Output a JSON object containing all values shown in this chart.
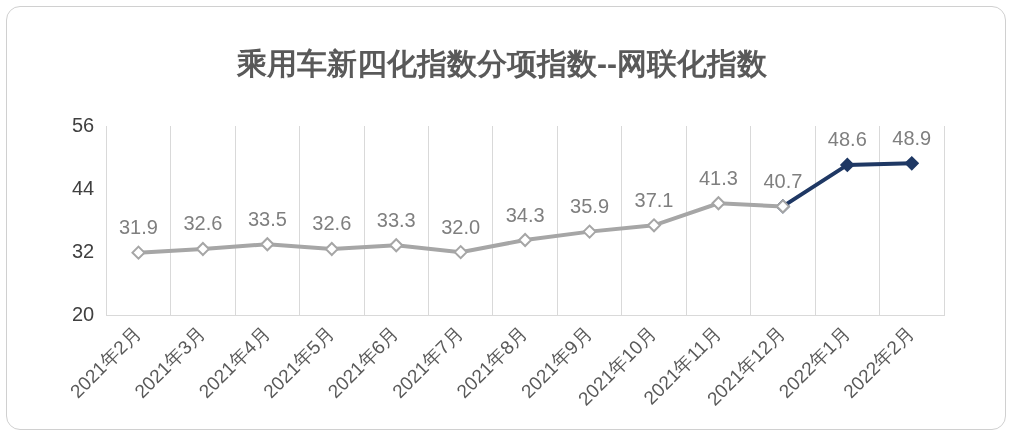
{
  "chart_data": {
    "type": "line",
    "title": "乘用车新四化指数分项指数--网联化指数",
    "categories": [
      "2021年2月",
      "2021年3月",
      "2021年4月",
      "2021年5月",
      "2021年6月",
      "2021年7月",
      "2021年8月",
      "2021年9月",
      "2021年10月",
      "2021年11月",
      "2021年12月",
      "2022年1月",
      "2022年2月"
    ],
    "series": [
      {
        "color": "#a6a6a6",
        "values": [
          31.9,
          32.6,
          33.5,
          32.6,
          33.3,
          32.0,
          34.3,
          35.9,
          37.1,
          41.3,
          40.7,
          null,
          null
        ],
        "value_labels": [
          "31.9",
          "32.6",
          "33.5",
          "32.6",
          "33.3",
          "32.0",
          "34.3",
          "35.9",
          "37.1",
          "41.3",
          "40.7",
          null,
          null
        ]
      },
      {
        "color": "#1f3864",
        "values": [
          null,
          null,
          null,
          null,
          null,
          null,
          null,
          null,
          null,
          null,
          40.7,
          48.6,
          48.9
        ],
        "value_labels": [
          null,
          null,
          null,
          null,
          null,
          null,
          null,
          null,
          null,
          null,
          null,
          "48.6",
          "48.9"
        ]
      }
    ],
    "ylim": [
      20,
      56
    ],
    "yticks": [
      20,
      32,
      44,
      56
    ],
    "grid": "x",
    "legend": false,
    "marker": "diamond",
    "line_style": "solid"
  }
}
